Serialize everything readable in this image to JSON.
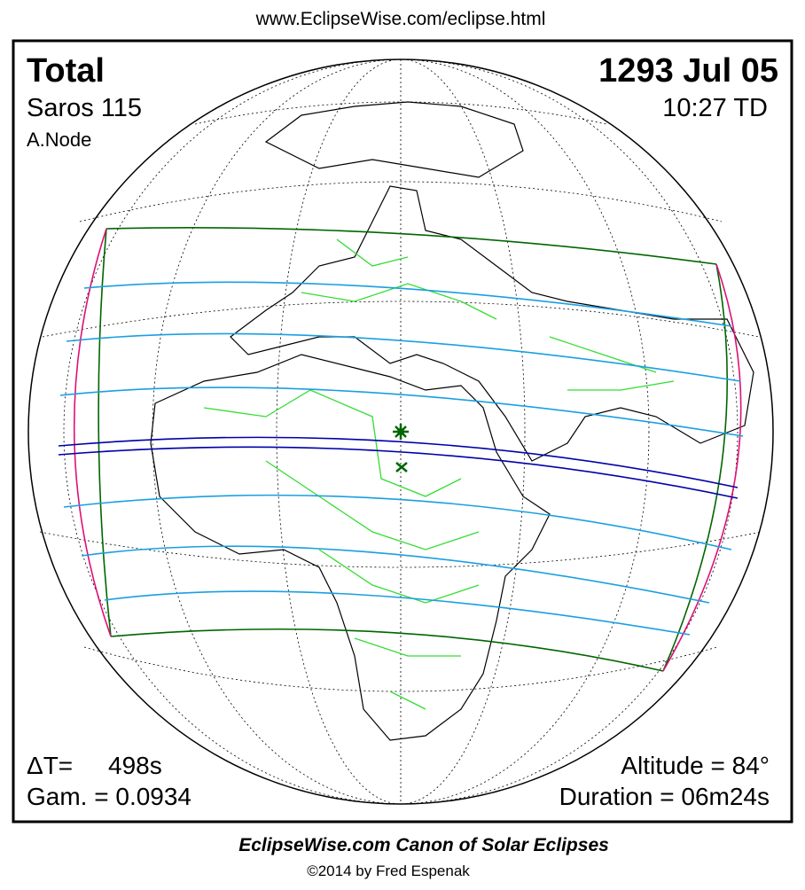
{
  "header": {
    "url": "www.EclipseWise.com/eclipse.html"
  },
  "eclipse": {
    "type": "Total",
    "date": "1293 Jul 05",
    "saros": "Saros 115",
    "time": "10:27 TD",
    "node": "A.Node",
    "delta_t_label": "ΔT=",
    "delta_t": "498s",
    "gamma": "Gam. = 0.0934",
    "altitude": "Altitude = 84°",
    "duration": "Duration = 06m24s"
  },
  "footer": {
    "title": "EclipseWise.com Canon of Solar Eclipses",
    "copyright": "©2014 by Fred Espenak"
  }
}
